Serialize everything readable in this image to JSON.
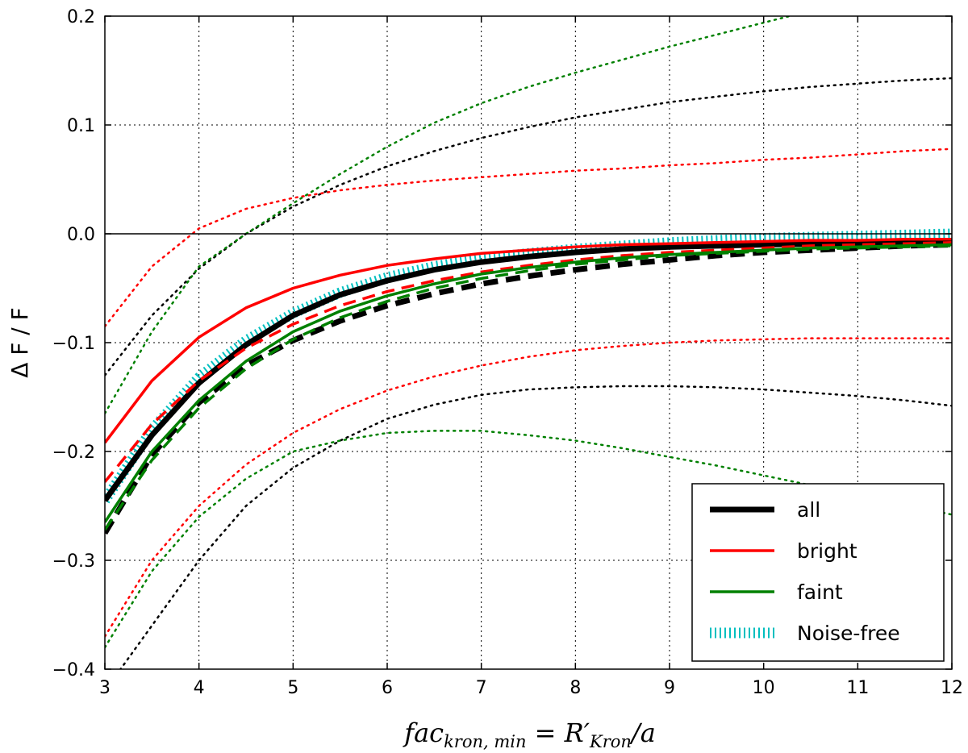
{
  "chart_data": {
    "type": "line",
    "xlabel": {
      "base": "fac",
      "sub": "kron, min",
      "eq": " = ",
      "r": "R′",
      "rsub": "Kron",
      "tail": "/a"
    },
    "ylabel": "Δ F / F",
    "xlim": [
      3,
      12
    ],
    "ylim": [
      -0.4,
      0.2
    ],
    "xticks": [
      3,
      4,
      5,
      6,
      7,
      8,
      9,
      10,
      11,
      12
    ],
    "yticks": [
      -0.4,
      -0.3,
      -0.2,
      -0.1,
      0.0,
      0.1,
      0.2
    ],
    "ytick_labels": [
      "−0.4",
      "−0.3",
      "−0.2",
      "−0.1",
      "0.0",
      "0.1",
      "0.2"
    ],
    "grid": true,
    "reference_line_y": 0,
    "legend_position": "lower right",
    "legend": [
      {
        "label": "all",
        "color": "#000000",
        "style": "solid-thick"
      },
      {
        "label": "bright",
        "color": "#ff0000",
        "style": "solid"
      },
      {
        "label": "faint",
        "color": "#008000",
        "style": "solid"
      },
      {
        "label": "Noise-free",
        "color": "#00bfbf",
        "style": "hatched"
      }
    ],
    "x": [
      3,
      3.5,
      4,
      4.5,
      5,
      5.5,
      6,
      6.5,
      7,
      7.5,
      8,
      8.5,
      9,
      9.5,
      10,
      10.5,
      11,
      11.5,
      12
    ],
    "series": [
      {
        "id": "all-median",
        "color": "#000000",
        "style": "solid-thick",
        "values": [
          -0.245,
          -0.185,
          -0.137,
          -0.102,
          -0.075,
          -0.056,
          -0.043,
          -0.033,
          -0.026,
          -0.021,
          -0.017,
          -0.014,
          -0.012,
          -0.011,
          -0.01,
          -0.009,
          -0.009,
          -0.008,
          -0.008
        ]
      },
      {
        "id": "all-mean",
        "color": "#000000",
        "style": "dashed-thick",
        "values": [
          -0.275,
          -0.203,
          -0.155,
          -0.121,
          -0.098,
          -0.08,
          -0.066,
          -0.055,
          -0.046,
          -0.039,
          -0.033,
          -0.028,
          -0.024,
          -0.02,
          -0.017,
          -0.015,
          -0.013,
          -0.011,
          -0.01
        ]
      },
      {
        "id": "all-upper",
        "color": "#000000",
        "style": "dotted",
        "values": [
          -0.13,
          -0.075,
          -0.032,
          0.0,
          0.025,
          0.045,
          0.062,
          0.076,
          0.088,
          0.098,
          0.107,
          0.114,
          0.121,
          0.126,
          0.131,
          0.135,
          0.138,
          0.141,
          0.143
        ]
      },
      {
        "id": "all-lower",
        "color": "#000000",
        "style": "dotted",
        "values": [
          -0.42,
          -0.36,
          -0.3,
          -0.25,
          -0.215,
          -0.19,
          -0.17,
          -0.157,
          -0.148,
          -0.143,
          -0.141,
          -0.14,
          -0.14,
          -0.141,
          -0.143,
          -0.146,
          -0.149,
          -0.153,
          -0.158
        ]
      },
      {
        "id": "bright-median",
        "color": "#ff0000",
        "style": "solid",
        "values": [
          -0.192,
          -0.135,
          -0.095,
          -0.068,
          -0.05,
          -0.038,
          -0.029,
          -0.023,
          -0.018,
          -0.015,
          -0.012,
          -0.01,
          -0.009,
          -0.008,
          -0.007,
          -0.006,
          -0.006,
          -0.005,
          -0.005
        ]
      },
      {
        "id": "bright-mean",
        "color": "#ff0000",
        "style": "dashed",
        "values": [
          -0.228,
          -0.175,
          -0.135,
          -0.105,
          -0.083,
          -0.066,
          -0.053,
          -0.043,
          -0.035,
          -0.029,
          -0.024,
          -0.02,
          -0.017,
          -0.015,
          -0.013,
          -0.011,
          -0.01,
          -0.009,
          -0.008
        ]
      },
      {
        "id": "bright-upper",
        "color": "#ff0000",
        "style": "dotted",
        "values": [
          -0.085,
          -0.03,
          0.005,
          0.023,
          0.033,
          0.04,
          0.045,
          0.049,
          0.052,
          0.055,
          0.058,
          0.06,
          0.063,
          0.065,
          0.068,
          0.07,
          0.073,
          0.076,
          0.078
        ]
      },
      {
        "id": "bright-lower",
        "color": "#ff0000",
        "style": "dotted",
        "values": [
          -0.37,
          -0.3,
          -0.25,
          -0.212,
          -0.183,
          -0.161,
          -0.144,
          -0.131,
          -0.121,
          -0.113,
          -0.107,
          -0.103,
          -0.1,
          -0.098,
          -0.097,
          -0.096,
          -0.096,
          -0.096,
          -0.096
        ]
      },
      {
        "id": "faint-median",
        "color": "#008000",
        "style": "solid",
        "values": [
          -0.265,
          -0.2,
          -0.153,
          -0.117,
          -0.09,
          -0.071,
          -0.057,
          -0.046,
          -0.037,
          -0.031,
          -0.026,
          -0.022,
          -0.019,
          -0.017,
          -0.015,
          -0.013,
          -0.012,
          -0.011,
          -0.01
        ]
      },
      {
        "id": "faint-mean",
        "color": "#008000",
        "style": "dashed",
        "values": [
          -0.272,
          -0.208,
          -0.16,
          -0.124,
          -0.097,
          -0.077,
          -0.062,
          -0.05,
          -0.041,
          -0.034,
          -0.028,
          -0.024,
          -0.02,
          -0.018,
          -0.016,
          -0.014,
          -0.013,
          -0.012,
          -0.011
        ]
      },
      {
        "id": "faint-upper",
        "color": "#008000",
        "style": "dotted",
        "values": [
          -0.165,
          -0.09,
          -0.03,
          0.0,
          0.028,
          0.055,
          0.08,
          0.102,
          0.12,
          0.135,
          0.148,
          0.16,
          0.172,
          0.183,
          0.194,
          0.205,
          0.215,
          0.225,
          0.235
        ]
      },
      {
        "id": "faint-lower",
        "color": "#008000",
        "style": "dotted",
        "values": [
          -0.38,
          -0.31,
          -0.26,
          -0.225,
          -0.2,
          -0.19,
          -0.183,
          -0.181,
          -0.181,
          -0.185,
          -0.19,
          -0.197,
          -0.205,
          -0.213,
          -0.222,
          -0.231,
          -0.24,
          -0.249,
          -0.258
        ]
      },
      {
        "id": "noise-free",
        "color": "#00bfbf",
        "style": "hatched",
        "values": [
          -0.245,
          -0.18,
          -0.132,
          -0.098,
          -0.073,
          -0.054,
          -0.04,
          -0.03,
          -0.023,
          -0.018,
          -0.014,
          -0.011,
          -0.008,
          -0.006,
          -0.004,
          -0.003,
          -0.002,
          -0.001,
          0.0
        ]
      }
    ]
  }
}
